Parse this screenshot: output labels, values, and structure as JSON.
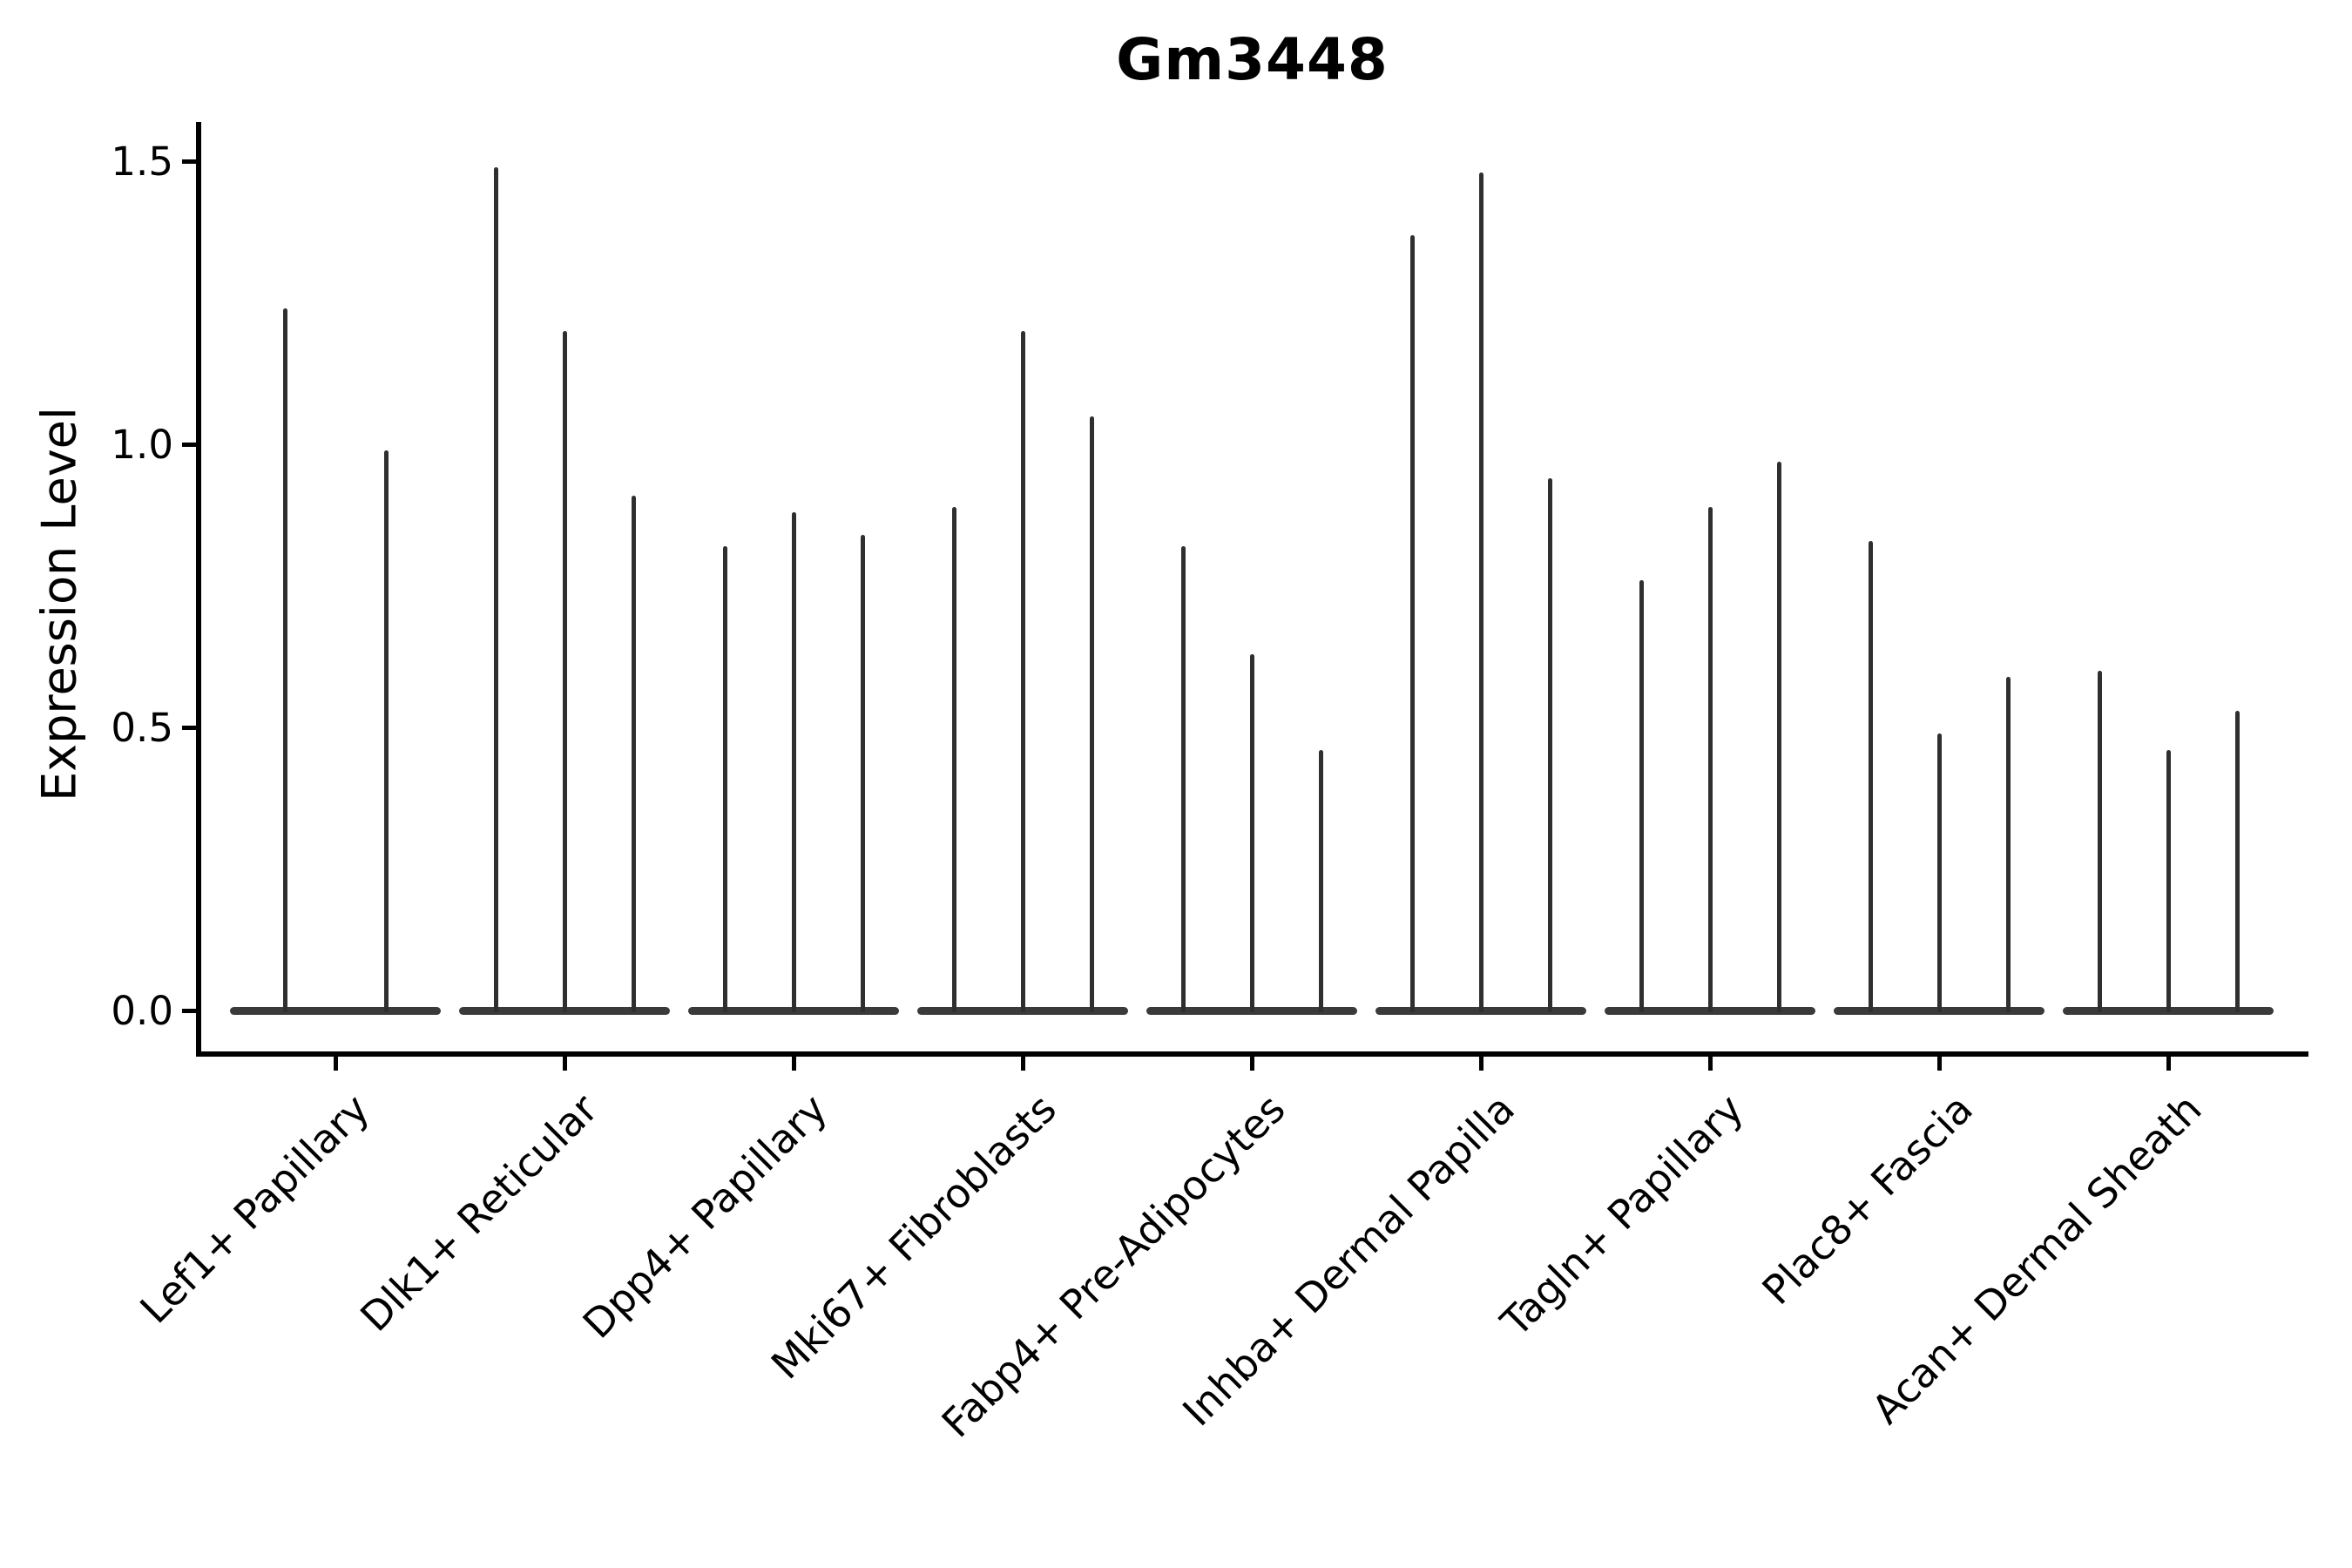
{
  "title": "Gm3448",
  "axes": {
    "ylabel": "Expression Level",
    "ytick_labels": [
      "0.0",
      "0.5",
      "1.0",
      "1.5"
    ]
  },
  "colors": {
    "violin_fill": "#3a3a3a",
    "violin_tail": "#2f2f2f",
    "axis": "#000000",
    "text": "#000000",
    "background": "#ffffff"
  },
  "chart_data": {
    "type": "violin",
    "title": "Gm3448",
    "xlabel": "",
    "ylabel": "Expression Level",
    "ylim": [
      -0.08,
      1.57
    ],
    "yticks": [
      0.0,
      0.5,
      1.0,
      1.5
    ],
    "grid": false,
    "legend_position": "none",
    "shape_note": "each violin's density mass sits at 0 (wide flat base on the baseline) with a single thin tail rising to its maximum expression value",
    "categories": [
      "Lef1+ Papillary",
      "Dlk1+ Reticular",
      "Dpp4+ Papillary",
      "Mki67+ Fibroblasts",
      "Fabp4+ Pre-Adipocytes",
      "Inhba+ Dermal Papilla",
      "Tagln+ Papillary",
      "Plac8+ Fascia",
      "Acan+ Dermal Sheath"
    ],
    "groups": [
      {
        "category": "Lef1+ Papillary",
        "violin_max_values": [
          1.24,
          0.99
        ]
      },
      {
        "category": "Dlk1+ Reticular",
        "violin_max_values": [
          1.49,
          1.2,
          0.91
        ]
      },
      {
        "category": "Dpp4+ Papillary",
        "violin_max_values": [
          0.82,
          0.88,
          0.84
        ]
      },
      {
        "category": "Mki67+ Fibroblasts",
        "violin_max_values": [
          0.89,
          1.2,
          1.05
        ]
      },
      {
        "category": "Fabp4+ Pre-Adipocytes",
        "violin_max_values": [
          0.82,
          0.63,
          0.46
        ]
      },
      {
        "category": "Inhba+ Dermal Papilla",
        "violin_max_values": [
          1.37,
          1.48,
          0.94
        ]
      },
      {
        "category": "Tagln+ Papillary",
        "violin_max_values": [
          0.76,
          0.89,
          0.97
        ]
      },
      {
        "category": "Plac8+ Fascia",
        "violin_max_values": [
          0.83,
          0.49,
          0.59
        ]
      },
      {
        "category": "Acan+ Dermal Sheath",
        "violin_max_values": [
          0.6,
          0.46,
          0.53
        ]
      }
    ]
  }
}
